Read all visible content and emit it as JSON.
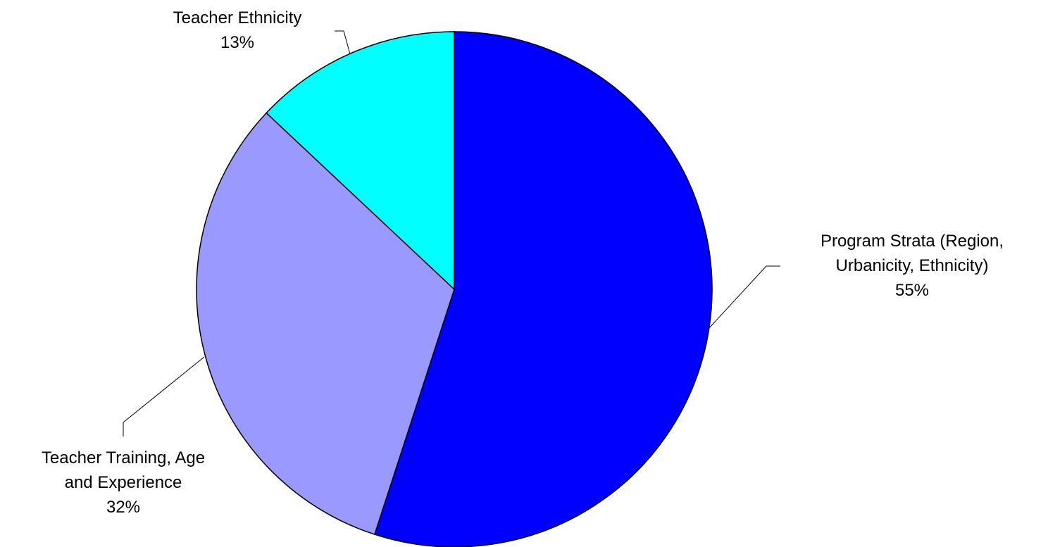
{
  "chart_data": {
    "type": "pie",
    "title": "",
    "start_angle_deg": 0,
    "direction": "clockwise",
    "slices": [
      {
        "name": "Program Strata (Region, Urbanicity, Ethnicity)",
        "label_lines": [
          "Program Strata (Region,",
          "Urbanicity, Ethnicity)",
          "55%"
        ],
        "value": 55,
        "color": "#0000ff"
      },
      {
        "name": "Teacher Training, Age and Experience",
        "label_lines": [
          "Teacher Training, Age",
          "and Experience",
          "32%"
        ],
        "value": 32,
        "color": "#9999ff"
      },
      {
        "name": "Teacher Ethnicity",
        "label_lines": [
          "Teacher Ethnicity",
          "13%"
        ],
        "value": 13,
        "color": "#00ffff"
      }
    ]
  }
}
